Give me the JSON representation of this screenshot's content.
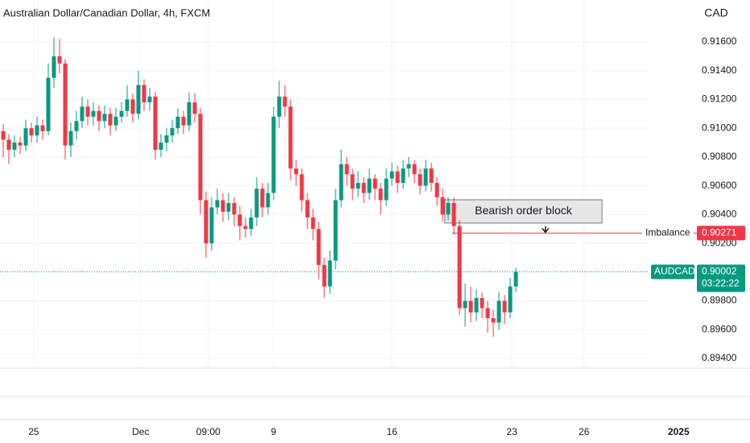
{
  "chart_data": {
    "type": "candlestick",
    "title": "Australian Dollar/Canadian Dollar, 4h, FXCM",
    "currency": "CAD",
    "up_color": "#089981",
    "down_color": "#f23645",
    "grid": true,
    "candles": [
      [
        0.9098,
        0.9103,
        0.908,
        0.9092
      ],
      [
        0.9092,
        0.9096,
        0.9075,
        0.9085
      ],
      [
        0.9085,
        0.9095,
        0.908,
        0.909
      ],
      [
        0.909,
        0.9094,
        0.9082,
        0.9088
      ],
      [
        0.9088,
        0.9106,
        0.9084,
        0.91
      ],
      [
        0.91,
        0.9104,
        0.909,
        0.9095
      ],
      [
        0.9095,
        0.9108,
        0.909,
        0.9102
      ],
      [
        0.9102,
        0.9106,
        0.9092,
        0.9098
      ],
      [
        0.9098,
        0.9145,
        0.9095,
        0.9135
      ],
      [
        0.9135,
        0.9163,
        0.9128,
        0.915
      ],
      [
        0.915,
        0.9162,
        0.9138,
        0.9145
      ],
      [
        0.9145,
        0.9148,
        0.9078,
        0.9088
      ],
      [
        0.9088,
        0.9104,
        0.908,
        0.9098
      ],
      [
        0.9098,
        0.9112,
        0.9092,
        0.9105
      ],
      [
        0.9105,
        0.9122,
        0.91,
        0.9115
      ],
      [
        0.9115,
        0.912,
        0.9102,
        0.9108
      ],
      [
        0.9108,
        0.9118,
        0.9102,
        0.9112
      ],
      [
        0.9112,
        0.9116,
        0.9098,
        0.9105
      ],
      [
        0.9105,
        0.9116,
        0.91,
        0.911
      ],
      [
        0.911,
        0.9114,
        0.9095,
        0.9102
      ],
      [
        0.9102,
        0.9114,
        0.9098,
        0.9108
      ],
      [
        0.9108,
        0.9118,
        0.9104,
        0.9112
      ],
      [
        0.9112,
        0.913,
        0.9108,
        0.912
      ],
      [
        0.912,
        0.9124,
        0.9104,
        0.911
      ],
      [
        0.911,
        0.914,
        0.9106,
        0.913
      ],
      [
        0.913,
        0.9134,
        0.9112,
        0.9118
      ],
      [
        0.9118,
        0.9128,
        0.9112,
        0.9122
      ],
      [
        0.9122,
        0.9125,
        0.9078,
        0.9085
      ],
      [
        0.9085,
        0.9096,
        0.908,
        0.909
      ],
      [
        0.909,
        0.91,
        0.9084,
        0.9095
      ],
      [
        0.9095,
        0.9106,
        0.909,
        0.91
      ],
      [
        0.91,
        0.9114,
        0.9096,
        0.9108
      ],
      [
        0.9108,
        0.9112,
        0.9096,
        0.9102
      ],
      [
        0.9102,
        0.9125,
        0.9098,
        0.9118
      ],
      [
        0.9118,
        0.9124,
        0.9104,
        0.911
      ],
      [
        0.911,
        0.9114,
        0.904,
        0.905
      ],
      [
        0.905,
        0.9056,
        0.901,
        0.902
      ],
      [
        0.902,
        0.9052,
        0.9015,
        0.9045
      ],
      [
        0.9045,
        0.9058,
        0.904,
        0.905
      ],
      [
        0.905,
        0.9055,
        0.9035,
        0.9042
      ],
      [
        0.9042,
        0.9055,
        0.9036,
        0.9048
      ],
      [
        0.9048,
        0.9052,
        0.9032,
        0.904
      ],
      [
        0.904,
        0.9046,
        0.9022,
        0.9032
      ],
      [
        0.9032,
        0.9038,
        0.9024,
        0.903
      ],
      [
        0.903,
        0.9044,
        0.9025,
        0.9038
      ],
      [
        0.9038,
        0.9066,
        0.9032,
        0.9058
      ],
      [
        0.9058,
        0.9062,
        0.9038,
        0.9045
      ],
      [
        0.9045,
        0.9062,
        0.904,
        0.9055
      ],
      [
        0.9055,
        0.9115,
        0.905,
        0.9108
      ],
      [
        0.9108,
        0.9133,
        0.91,
        0.9122
      ],
      [
        0.9122,
        0.913,
        0.9108,
        0.9115
      ],
      [
        0.9115,
        0.912,
        0.9064,
        0.9072
      ],
      [
        0.9072,
        0.9078,
        0.906,
        0.9068
      ],
      [
        0.9068,
        0.9072,
        0.9042,
        0.905
      ],
      [
        0.905,
        0.9055,
        0.903,
        0.9038
      ],
      [
        0.9038,
        0.9044,
        0.9022,
        0.903
      ],
      [
        0.903,
        0.9035,
        0.8995,
        0.9005
      ],
      [
        0.9005,
        0.901,
        0.8982,
        0.899
      ],
      [
        0.899,
        0.9015,
        0.8985,
        0.9008
      ],
      [
        0.9008,
        0.9058,
        0.9002,
        0.905
      ],
      [
        0.905,
        0.9085,
        0.9045,
        0.9075
      ],
      [
        0.9075,
        0.908,
        0.906,
        0.9068
      ],
      [
        0.9068,
        0.9072,
        0.905,
        0.9058
      ],
      [
        0.9058,
        0.907,
        0.9052,
        0.9062
      ],
      [
        0.9062,
        0.9066,
        0.9048,
        0.9055
      ],
      [
        0.9055,
        0.9072,
        0.905,
        0.9065
      ],
      [
        0.9065,
        0.9068,
        0.905,
        0.9058
      ],
      [
        0.9058,
        0.9062,
        0.904,
        0.905
      ],
      [
        0.905,
        0.9072,
        0.9046,
        0.9065
      ],
      [
        0.9065,
        0.9076,
        0.906,
        0.907
      ],
      [
        0.907,
        0.9074,
        0.9055,
        0.9062
      ],
      [
        0.9062,
        0.9078,
        0.9058,
        0.9072
      ],
      [
        0.9072,
        0.908,
        0.9066,
        0.9075
      ],
      [
        0.9075,
        0.9078,
        0.9062,
        0.9068
      ],
      [
        0.9068,
        0.9072,
        0.9054,
        0.906
      ],
      [
        0.906,
        0.9078,
        0.9056,
        0.9072
      ],
      [
        0.9072,
        0.9076,
        0.9056,
        0.9062
      ],
      [
        0.9062,
        0.9066,
        0.9046,
        0.9052
      ],
      [
        0.9052,
        0.9058,
        0.9035,
        0.904
      ],
      [
        0.904,
        0.9052,
        0.9036,
        0.9048
      ],
      [
        0.9048,
        0.9052,
        0.9026,
        0.9032
      ],
      [
        0.9032,
        0.9036,
        0.897,
        0.8975
      ],
      [
        0.8975,
        0.8992,
        0.8962,
        0.898
      ],
      [
        0.898,
        0.899,
        0.8965,
        0.8972
      ],
      [
        0.8972,
        0.8988,
        0.8966,
        0.8982
      ],
      [
        0.8982,
        0.8986,
        0.8968,
        0.8975
      ],
      [
        0.8975,
        0.898,
        0.8958,
        0.8968
      ],
      [
        0.8968,
        0.8974,
        0.8955,
        0.8965
      ],
      [
        0.8965,
        0.8986,
        0.896,
        0.898
      ],
      [
        0.898,
        0.8984,
        0.8964,
        0.8972
      ],
      [
        0.8972,
        0.8996,
        0.8968,
        0.899
      ],
      [
        0.899,
        0.9003,
        0.8986,
        0.90002
      ]
    ],
    "ylim": [
      0.89333,
      0.91891
    ],
    "yticks": [
      {
        "value": 0.916,
        "label": "0.91600"
      },
      {
        "value": 0.914,
        "label": "0.91400"
      },
      {
        "value": 0.912,
        "label": "0.91200"
      },
      {
        "value": 0.91,
        "label": "0.91000"
      },
      {
        "value": 0.908,
        "label": "0.90800"
      },
      {
        "value": 0.906,
        "label": "0.90600"
      },
      {
        "value": 0.904,
        "label": "0.90400"
      },
      {
        "value": 0.902,
        "label": "0.90200"
      },
      {
        "value": 0.898,
        "label": "0.89800"
      },
      {
        "value": 0.896,
        "label": "0.89600"
      },
      {
        "value": 0.894,
        "label": "0.89400"
      }
    ],
    "xlim": [
      -0.5,
      114.7
    ],
    "xticks": [
      {
        "value": 5.4,
        "label": "25"
      },
      {
        "value": 24.4,
        "label": "Dec"
      },
      {
        "value": 36.4,
        "label": "09:00"
      },
      {
        "value": 48,
        "label": "9"
      },
      {
        "value": 69,
        "label": "16"
      },
      {
        "value": 90.3,
        "label": "23"
      },
      {
        "value": 103.1,
        "label": "26"
      },
      {
        "value": 119.9,
        "label": "2025"
      }
    ],
    "order_block": {
      "label": "Bearish order block",
      "x": [
        78.4,
        106.3
      ],
      "y": [
        0.90341,
        0.90503
      ]
    },
    "imbalance": {
      "label": "Imbalance",
      "value": 0.90271,
      "value_label": "0.90271",
      "x_start": 79.7
    },
    "last_price": {
      "symbol": "AUDCAD",
      "value": 0.90002,
      "value_label": "0.90002",
      "countdown": "03:22:22"
    }
  }
}
